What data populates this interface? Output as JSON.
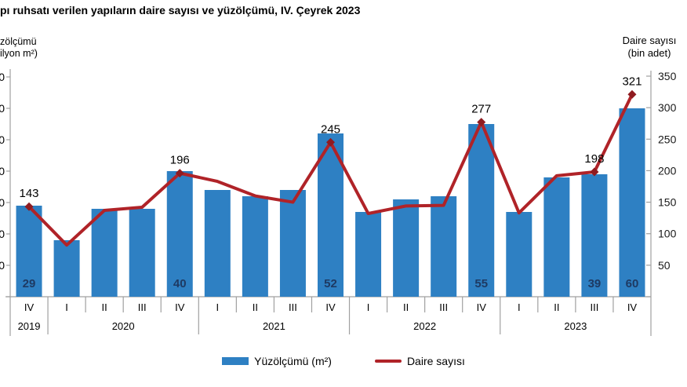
{
  "chart_data": {
    "type": "bar",
    "title": "pı ruhsatı verilen yapıların daire sayısı ve yüzölçümü, IV. Çeyrek 2023",
    "categories_quarters": [
      "IV",
      "I",
      "II",
      "III",
      "IV",
      "I",
      "II",
      "III",
      "IV",
      "I",
      "II",
      "III",
      "IV",
      "I",
      "II",
      "III",
      "IV"
    ],
    "year_groups": [
      {
        "label": "2019",
        "span": 1
      },
      {
        "label": "2020",
        "span": 4
      },
      {
        "label": "2021",
        "span": 4
      },
      {
        "label": "2022",
        "span": 4
      },
      {
        "label": "2023",
        "span": 4
      }
    ],
    "series": [
      {
        "name": "Yüzölçümü (m²)",
        "type": "bar",
        "axis": "left",
        "color": "#2E80C3",
        "values": [
          29,
          18,
          28,
          28,
          40,
          34,
          32,
          34,
          52,
          27,
          31,
          32,
          55,
          27,
          38,
          39,
          60
        ],
        "shown_labels": {
          "0": "29",
          "4": "40",
          "8": "52",
          "12": "55",
          "15": "39",
          "16": "60"
        }
      },
      {
        "name": "Daire sayısı",
        "type": "line",
        "axis": "right",
        "color": "#B02328",
        "marker_color": "#8F1B20",
        "values": [
          143,
          82,
          137,
          142,
          196,
          183,
          160,
          150,
          245,
          132,
          144,
          145,
          277,
          133,
          192,
          198,
          321
        ],
        "shown_labels": {
          "0": "143",
          "4": "196",
          "8": "245",
          "12": "277",
          "15": "198",
          "16": "321"
        },
        "marker_indices": [
          0,
          4,
          8,
          12,
          15,
          16
        ]
      }
    ],
    "left_axis": {
      "title_line1": "zölçümü",
      "title_line2": "ilyon m²)",
      "min": 0,
      "max": 70,
      "step": 10,
      "labels_clipped": true,
      "tick_label_fragment": "0"
    },
    "right_axis": {
      "title_line1": "Daire sayısı",
      "title_line2": "(bin adet)",
      "min": 0,
      "max": 350,
      "step": 50,
      "tick_labels": [
        "350",
        "300",
        "250",
        "200",
        "150",
        "100",
        "50"
      ]
    },
    "legend": [
      {
        "label": "Yüzölçümü (m²)",
        "swatch": "bar",
        "color": "#2E80C3"
      },
      {
        "label": "Daire sayısı",
        "swatch": "line",
        "color": "#B02328"
      }
    ],
    "colors": {
      "bar": "#2E80C3",
      "line": "#B02328",
      "marker": "#8F1B20",
      "bar_label": "#1E3A63",
      "axis": "#A0A0A0",
      "text": "#000000"
    }
  }
}
